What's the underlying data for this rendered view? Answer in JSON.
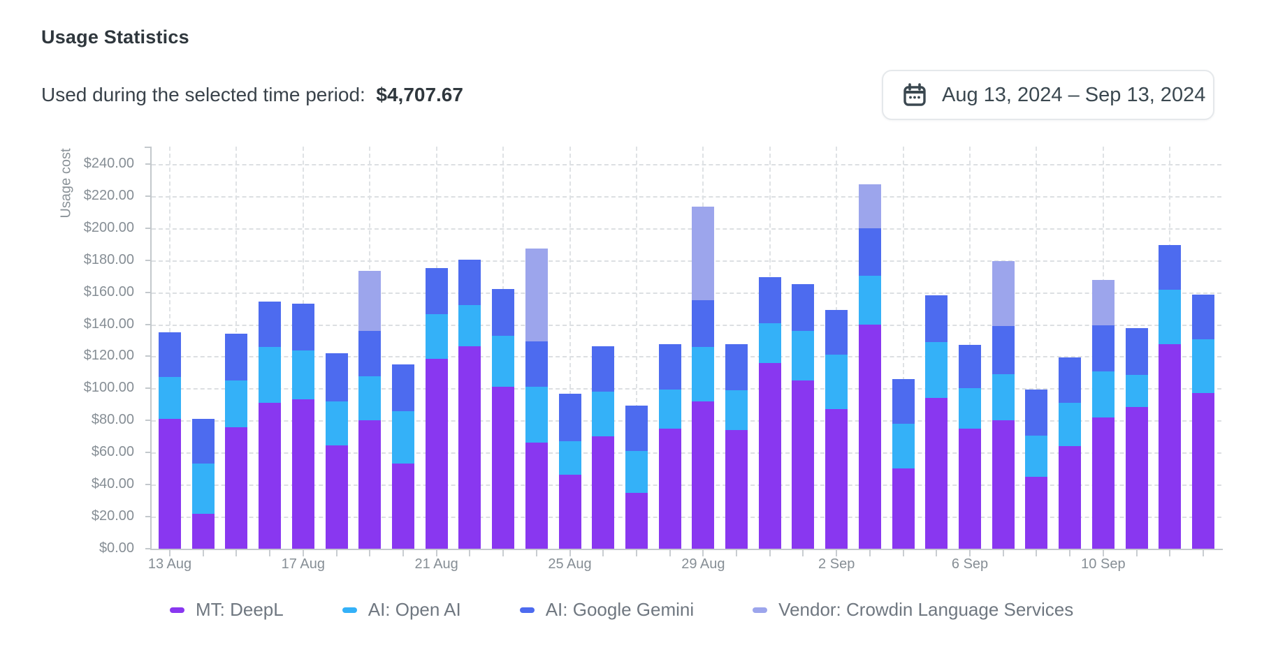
{
  "header": {
    "title": "Usage Statistics",
    "subtitle_label": "Used during the selected time period:",
    "subtitle_amount": "$4,707.67",
    "date_range_label": "Aug 13, 2024 – Sep 13, 2024"
  },
  "chart_data": {
    "type": "bar",
    "stacked": true,
    "ylabel": "Usage cost",
    "ylim": [
      0,
      250
    ],
    "ytick_step": 20,
    "ytick_prefix": "$",
    "grid": true,
    "legend_position": "bottom",
    "categories": [
      "13 Aug",
      "14 Aug",
      "15 Aug",
      "16 Aug",
      "17 Aug",
      "18 Aug",
      "19 Aug",
      "20 Aug",
      "21 Aug",
      "22 Aug",
      "23 Aug",
      "24 Aug",
      "25 Aug",
      "26 Aug",
      "27 Aug",
      "28 Aug",
      "29 Aug",
      "30 Aug",
      "31 Aug",
      "1 Sep",
      "2 Sep",
      "3 Sep",
      "4 Sep",
      "5 Sep",
      "6 Sep",
      "7 Sep",
      "8 Sep",
      "9 Sep",
      "10 Sep",
      "11 Sep",
      "12 Sep",
      "13 Sep"
    ],
    "xtick_shown_indices": [
      0,
      4,
      8,
      12,
      16,
      20,
      24,
      28
    ],
    "xtick_shown_labels": [
      "13 Aug",
      "17 Aug",
      "21 Aug",
      "25 Aug",
      "29 Aug",
      "2 Sep",
      "6 Sep",
      "10 Sep"
    ],
    "series": [
      {
        "name": "MT: DeepL",
        "color": "#8937f0",
        "values": [
          81,
          22,
          76,
          91,
          93,
          64.5,
          80,
          53,
          118.5,
          126.5,
          101,
          66,
          46,
          70,
          35,
          75,
          92,
          74,
          116,
          105,
          87,
          140,
          50,
          94,
          75,
          80,
          45,
          64,
          82,
          88.5,
          127.5,
          97
        ]
      },
      {
        "name": "AI: Open AI",
        "color": "#34b1f8",
        "values": [
          26,
          31,
          29,
          35,
          30.5,
          27.5,
          27.5,
          33,
          28,
          25.5,
          32,
          35,
          21,
          28,
          26,
          24.5,
          34,
          25,
          24.5,
          31,
          34,
          30.5,
          28,
          35,
          25,
          29,
          25.5,
          27,
          28.5,
          20,
          34,
          33.5
        ]
      },
      {
        "name": "AI: Google Gemini",
        "color": "#4d6bef",
        "values": [
          28,
          28,
          29,
          28,
          29.5,
          30,
          28.5,
          29,
          28.5,
          28.5,
          29,
          28.5,
          29.5,
          28.5,
          28.5,
          28,
          29,
          28.5,
          29,
          29,
          28,
          29.5,
          28,
          29,
          27,
          30,
          29,
          28.5,
          29,
          29,
          28,
          28
        ]
      },
      {
        "name": "Vendor: Crowdin Language Services",
        "color": "#9ca5ec",
        "values": [
          0,
          0,
          0,
          0,
          0,
          0,
          37.5,
          0,
          0,
          0,
          0,
          58,
          0,
          0,
          0,
          0,
          58.5,
          0,
          0,
          0,
          0,
          27.5,
          0,
          0,
          0,
          40.5,
          0,
          0,
          28,
          0,
          0,
          0
        ]
      }
    ]
  }
}
